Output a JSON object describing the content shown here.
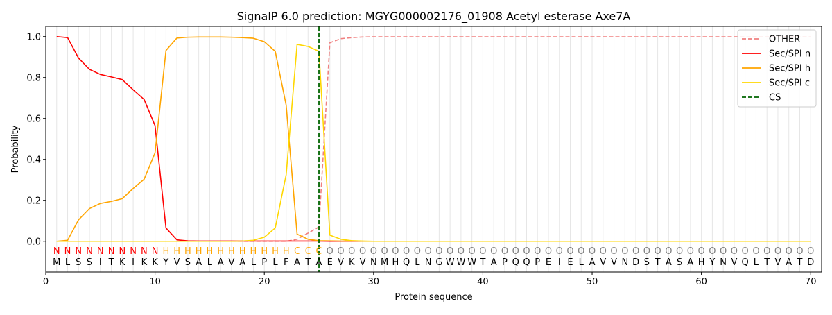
{
  "chart_data": {
    "type": "line",
    "title": "SignalP 6.0 prediction: MGYG000002176_01908 Acetyl esterase Axe7A",
    "xlabel": "Protein sequence",
    "ylabel": "Probability",
    "xlim": [
      0,
      71
    ],
    "ylim": [
      -0.15,
      1.05
    ],
    "xticks": [
      0,
      10,
      20,
      30,
      40,
      50,
      60,
      70
    ],
    "yticks": [
      0.0,
      0.2,
      0.4,
      0.6,
      0.8,
      1.0
    ],
    "x_tick_labels": [
      "0",
      "10",
      "20",
      "30",
      "40",
      "50",
      "60",
      "70"
    ],
    "y_tick_labels": [
      "0.0",
      "0.2",
      "0.4",
      "0.6",
      "0.8",
      "1.0"
    ],
    "grid": "vertical lines at each residue",
    "legend_position": "top-right",
    "x": [
      1,
      2,
      3,
      4,
      5,
      6,
      7,
      8,
      9,
      10,
      11,
      12,
      13,
      14,
      15,
      16,
      17,
      18,
      19,
      20,
      21,
      22,
      23,
      24,
      25,
      26,
      27,
      28,
      29,
      30,
      31,
      32,
      33,
      34,
      35,
      36,
      37,
      38,
      39,
      40,
      41,
      42,
      43,
      44,
      45,
      46,
      47,
      48,
      49,
      50,
      51,
      52,
      53,
      54,
      55,
      56,
      57,
      58,
      59,
      60,
      61,
      62,
      63,
      64,
      65,
      66,
      67,
      68,
      69,
      70
    ],
    "sequence": [
      "M",
      "L",
      "S",
      "S",
      "I",
      "T",
      "K",
      "I",
      "K",
      "K",
      "Y",
      "V",
      "S",
      "A",
      "L",
      "A",
      "V",
      "A",
      "L",
      "P",
      "L",
      "F",
      "A",
      "T",
      "A",
      "E",
      "V",
      "K",
      "V",
      "N",
      "M",
      "H",
      "Q",
      "L",
      "N",
      "G",
      "W",
      "W",
      "W",
      "T",
      "A",
      "P",
      "Q",
      "Q",
      "P",
      "E",
      "I",
      "E",
      "L",
      "A",
      "V",
      "V",
      "N",
      "D",
      "S",
      "T",
      "A",
      "S",
      "A",
      "H",
      "Y",
      "N",
      "V",
      "Q",
      "L",
      "T",
      "V",
      "A",
      "T",
      "D"
    ],
    "labels": [
      "N",
      "N",
      "N",
      "N",
      "N",
      "N",
      "N",
      "N",
      "N",
      "N",
      "H",
      "H",
      "H",
      "H",
      "H",
      "H",
      "H",
      "H",
      "H",
      "H",
      "H",
      "H",
      "C",
      "C",
      "C",
      "O",
      "O",
      "O",
      "O",
      "O",
      "O",
      "O",
      "O",
      "O",
      "O",
      "O",
      "O",
      "O",
      "O",
      "O",
      "O",
      "O",
      "O",
      "O",
      "O",
      "O",
      "O",
      "O",
      "O",
      "O",
      "O",
      "O",
      "O",
      "O",
      "O",
      "O",
      "O",
      "O",
      "O",
      "O",
      "O",
      "O",
      "O",
      "O",
      "O",
      "O",
      "O",
      "O",
      "O",
      "O"
    ],
    "label_colors": {
      "N": "#ff0000",
      "H": "#ffa500",
      "C": "#ffa500",
      "O": "#808080"
    },
    "series": [
      {
        "name": "OTHER",
        "color": "#f08080",
        "dash": "dashed",
        "values": [
          0,
          0,
          0,
          0,
          0,
          0,
          0,
          0,
          0,
          0,
          0,
          0,
          0,
          0,
          0,
          0,
          0,
          0,
          0,
          0,
          0,
          0,
          0.01,
          0.04,
          0.07,
          0.97,
          0.99,
          0.995,
          0.998,
          0.999,
          0.999,
          0.999,
          0.999,
          0.999,
          0.999,
          0.999,
          0.999,
          0.999,
          0.999,
          0.999,
          0.999,
          0.999,
          0.999,
          0.999,
          0.999,
          0.999,
          0.999,
          0.999,
          0.999,
          0.999,
          0.999,
          0.999,
          0.999,
          0.999,
          0.999,
          0.999,
          0.999,
          0.999,
          0.999,
          0.999,
          0.999,
          0.999,
          0.999,
          0.999,
          0.999,
          0.999,
          0.999,
          0.999,
          0.999,
          0.999
        ]
      },
      {
        "name": "Sec/SPI n",
        "color": "#ff0000",
        "dash": "solid",
        "values": [
          1.0,
          0.995,
          0.895,
          0.84,
          0.815,
          0.803,
          0.79,
          0.74,
          0.693,
          0.565,
          0.065,
          0.007,
          0.002,
          0.001,
          0.001,
          0.001,
          0.001,
          0.001,
          0.001,
          0.001,
          0.001,
          0.001,
          0.001,
          0.001,
          0.001,
          0,
          0,
          0,
          0,
          0,
          0,
          0,
          0,
          0,
          0,
          0,
          0,
          0,
          0,
          0,
          0,
          0,
          0,
          0,
          0,
          0,
          0,
          0,
          0,
          0,
          0,
          0,
          0,
          0,
          0,
          0,
          0,
          0,
          0,
          0,
          0,
          0,
          0,
          0,
          0,
          0,
          0,
          0,
          0,
          0
        ]
      },
      {
        "name": "Sec/SPI h",
        "color": "#ffa500",
        "dash": "solid",
        "values": [
          0,
          0.005,
          0.105,
          0.16,
          0.185,
          0.195,
          0.208,
          0.258,
          0.303,
          0.432,
          0.932,
          0.993,
          0.997,
          0.998,
          0.998,
          0.998,
          0.997,
          0.995,
          0.992,
          0.975,
          0.928,
          0.665,
          0.035,
          0.01,
          0.003,
          0.002,
          0.001,
          0.001,
          0,
          0,
          0,
          0,
          0,
          0,
          0,
          0,
          0,
          0,
          0,
          0,
          0,
          0,
          0,
          0,
          0,
          0,
          0,
          0,
          0,
          0,
          0,
          0,
          0,
          0,
          0,
          0,
          0,
          0,
          0,
          0,
          0,
          0,
          0,
          0,
          0,
          0,
          0,
          0,
          0,
          0
        ]
      },
      {
        "name": "Sec/SPI c",
        "color": "#ffd700",
        "dash": "solid",
        "values": [
          0,
          0,
          0,
          0,
          0,
          0,
          0,
          0,
          0,
          0,
          0,
          0,
          0,
          0,
          0,
          0,
          0,
          0.001,
          0.005,
          0.02,
          0.065,
          0.325,
          0.962,
          0.952,
          0.928,
          0.03,
          0.01,
          0.003,
          0.001,
          0,
          0,
          0,
          0,
          0,
          0,
          0,
          0,
          0,
          0,
          0,
          0,
          0,
          0,
          0,
          0,
          0,
          0,
          0,
          0,
          0,
          0,
          0,
          0,
          0,
          0,
          0,
          0,
          0,
          0,
          0,
          0,
          0,
          0,
          0,
          0,
          0,
          0,
          0,
          0,
          0
        ]
      }
    ],
    "cs": {
      "name": "CS",
      "x": 25,
      "color": "#006400"
    }
  }
}
